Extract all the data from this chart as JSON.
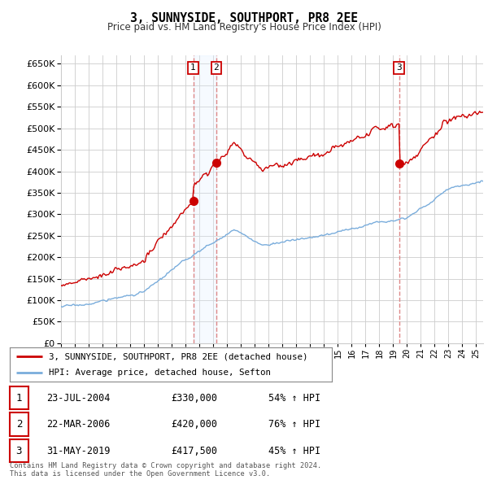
{
  "title": "3, SUNNYSIDE, SOUTHPORT, PR8 2EE",
  "subtitle": "Price paid vs. HM Land Registry's House Price Index (HPI)",
  "ylabel_ticks": [
    0,
    50000,
    100000,
    150000,
    200000,
    250000,
    300000,
    350000,
    400000,
    450000,
    500000,
    550000,
    600000,
    650000
  ],
  "ylim": [
    0,
    670000
  ],
  "xlim_start": 1995.0,
  "xlim_end": 2025.5,
  "legend_line1": "3, SUNNYSIDE, SOUTHPORT, PR8 2EE (detached house)",
  "legend_line2": "HPI: Average price, detached house, Sefton",
  "sale1_date": "23-JUL-2004",
  "sale1_price": 330000,
  "sale1_pct": "54% ↑ HPI",
  "sale2_date": "22-MAR-2006",
  "sale2_price": 420000,
  "sale2_pct": "76% ↑ HPI",
  "sale3_date": "31-MAY-2019",
  "sale3_price": 417500,
  "sale3_pct": "45% ↑ HPI",
  "red_color": "#cc0000",
  "blue_color": "#7aaddc",
  "shade_color": "#ddeeff",
  "dashed_color": "#dd8888",
  "background_color": "#ffffff",
  "grid_color": "#cccccc",
  "footer": "Contains HM Land Registry data © Crown copyright and database right 2024.\nThis data is licensed under the Open Government Licence v3.0.",
  "sale1_x": 2004.55,
  "sale2_x": 2006.22,
  "sale3_x": 2019.42
}
